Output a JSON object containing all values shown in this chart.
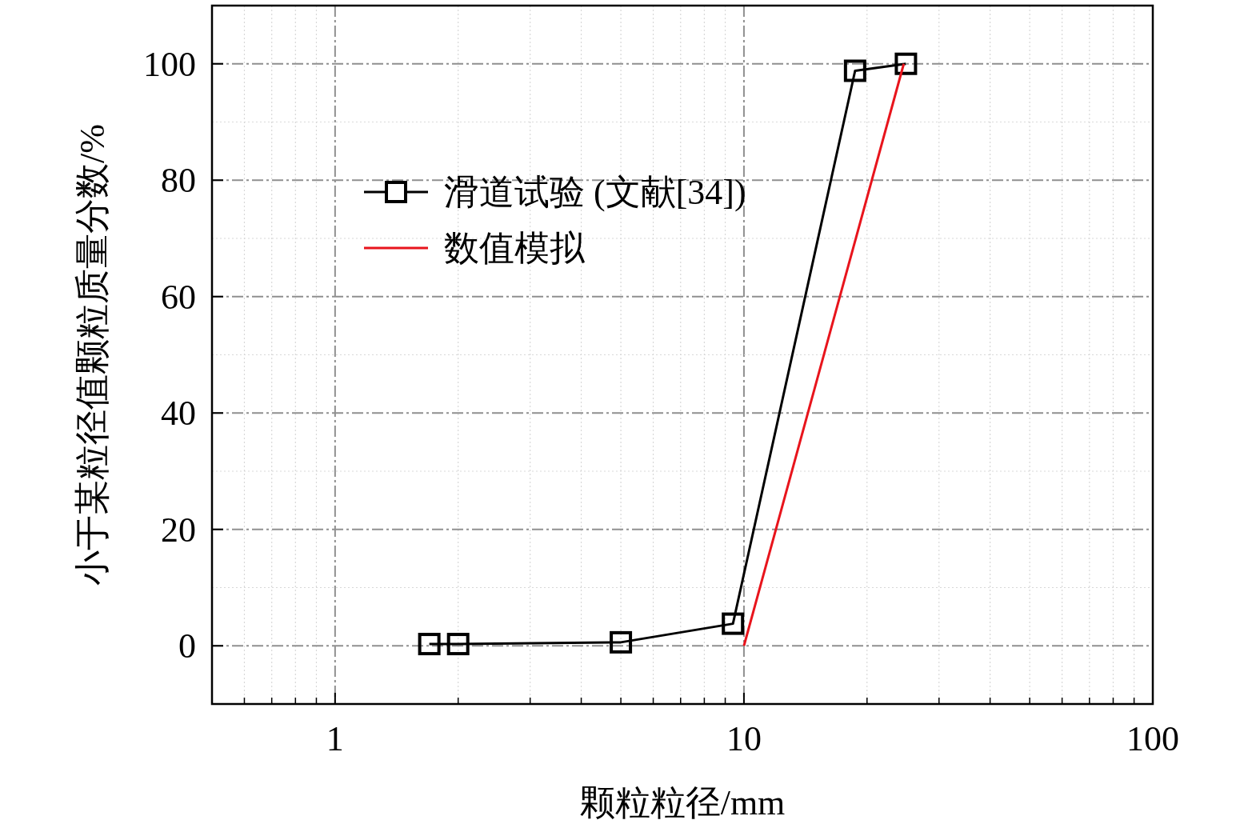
{
  "chart_data": {
    "type": "line",
    "xlabel": "颗粒粒径/mm",
    "ylabel": "小于某粒径值颗粒质量分数/%",
    "log": "x",
    "grid": true,
    "legend": "top left",
    "xlim": [
      0.5,
      100
    ],
    "xticks": [
      1,
      10,
      100
    ],
    "ylim": [
      -10,
      110
    ],
    "yticks": [
      0,
      20,
      40,
      60,
      80,
      100
    ],
    "series": [
      {
        "name": "滑道试验 (文献[34])",
        "color": "#000000",
        "marker": "square",
        "x": [
          1.7,
          2,
          5,
          9.4,
          18.7,
          24.9
        ],
        "values": [
          0.3,
          0.3,
          0.6,
          3.8,
          98.8,
          100
        ]
      },
      {
        "name": "数值模拟",
        "color": "#e8141c",
        "marker": "none",
        "x": [
          10,
          24.6
        ],
        "values": [
          0,
          100
        ]
      }
    ]
  }
}
